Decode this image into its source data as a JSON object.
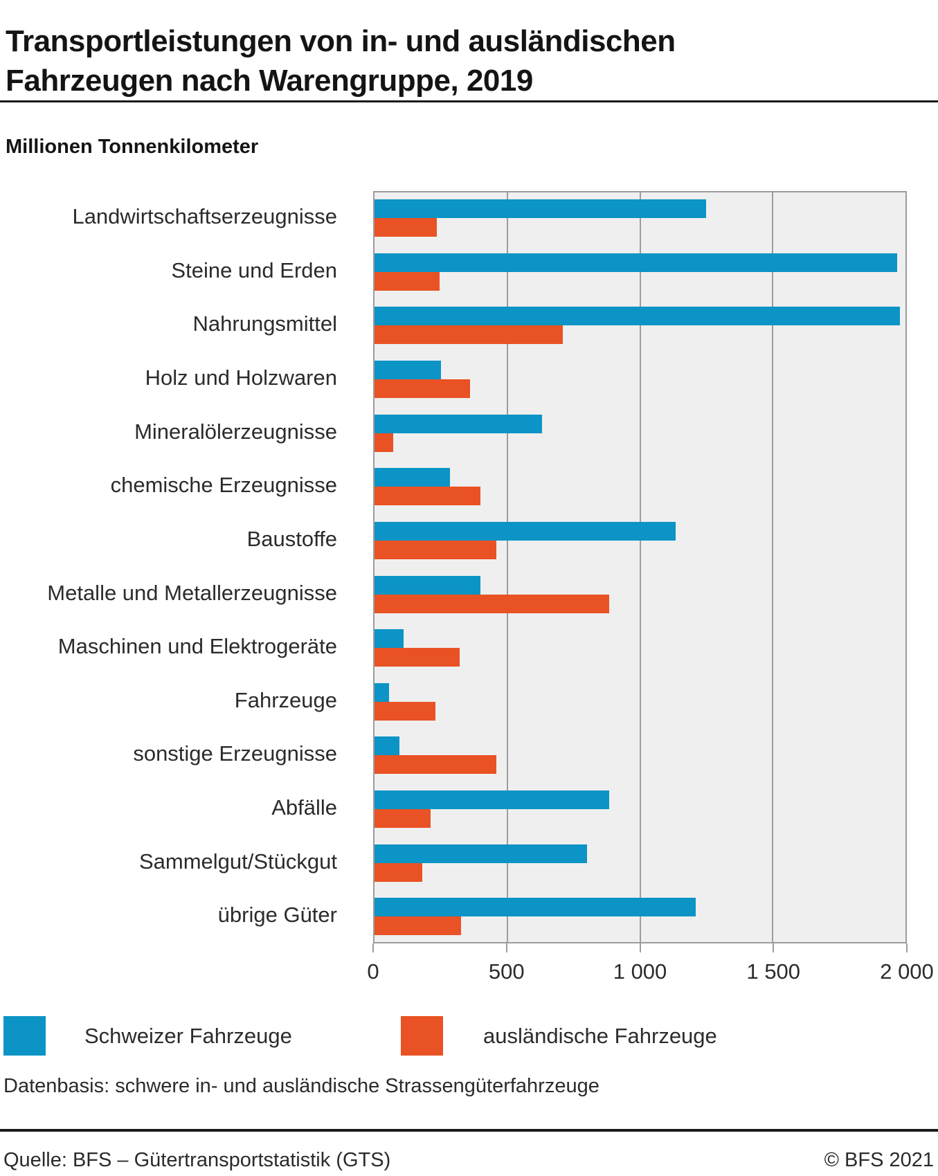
{
  "title": "Transportleistungen von in- und ausländischen Fahrzeugen nach Warengruppe, 2019",
  "subtitle": "Millionen Tonnenkilometer",
  "chart_data": {
    "type": "bar",
    "orientation": "horizontal",
    "title": "Transportleistungen von in- und ausländischen Fahrzeugen nach Warengruppe, 2019",
    "unit_label": "Millionen Tonnenkilometer",
    "categories": [
      "Landwirtschaftserzeugnisse",
      "Steine und Erden",
      "Nahrungsmittel",
      "Holz und Holzwaren",
      "Mineralölerzeugnisse",
      "chemische Erzeugnisse",
      "Baustoffe",
      "Metalle und Metallerzeugnisse",
      "Maschinen und Elektrogeräte",
      "Fahrzeuge",
      "sonstige Erzeugnisse",
      "Abfälle",
      "Sammelgut/Stückgut",
      "übrige Güter"
    ],
    "series": [
      {
        "name": "Schweizer Fahrzeuge",
        "color": "#0b94c5",
        "values": [
          1250,
          1970,
          1980,
          250,
          630,
          285,
          1135,
          400,
          110,
          55,
          95,
          885,
          800,
          1210
        ]
      },
      {
        "name": "ausländische Fahrzeuge",
        "color": "#e95224",
        "values": [
          235,
          245,
          710,
          360,
          70,
          400,
          460,
          885,
          320,
          230,
          460,
          210,
          180,
          325
        ]
      }
    ],
    "xlim": [
      0,
      2000
    ],
    "xticks": [
      0,
      500,
      1000,
      1500,
      2000
    ],
    "xtick_labels": [
      "0",
      "500",
      "1 000",
      "1 500",
      "2 000"
    ],
    "grid": true,
    "plot_background": "#efefef",
    "grid_color": "#9c9c9c",
    "legend_position": "bottom"
  },
  "legend": {
    "items": [
      {
        "label": "Schweizer Fahrzeuge",
        "color": "#0b94c5"
      },
      {
        "label": "ausländische Fahrzeuge",
        "color": "#e95224"
      }
    ]
  },
  "notes": {
    "databasis": "Datenbasis: schwere in- und ausländische Strassengüterfahrzeuge"
  },
  "footer": {
    "source": "Quelle: BFS – Gütertransportstatistik (GTS)",
    "copyright": "© BFS 2021"
  }
}
